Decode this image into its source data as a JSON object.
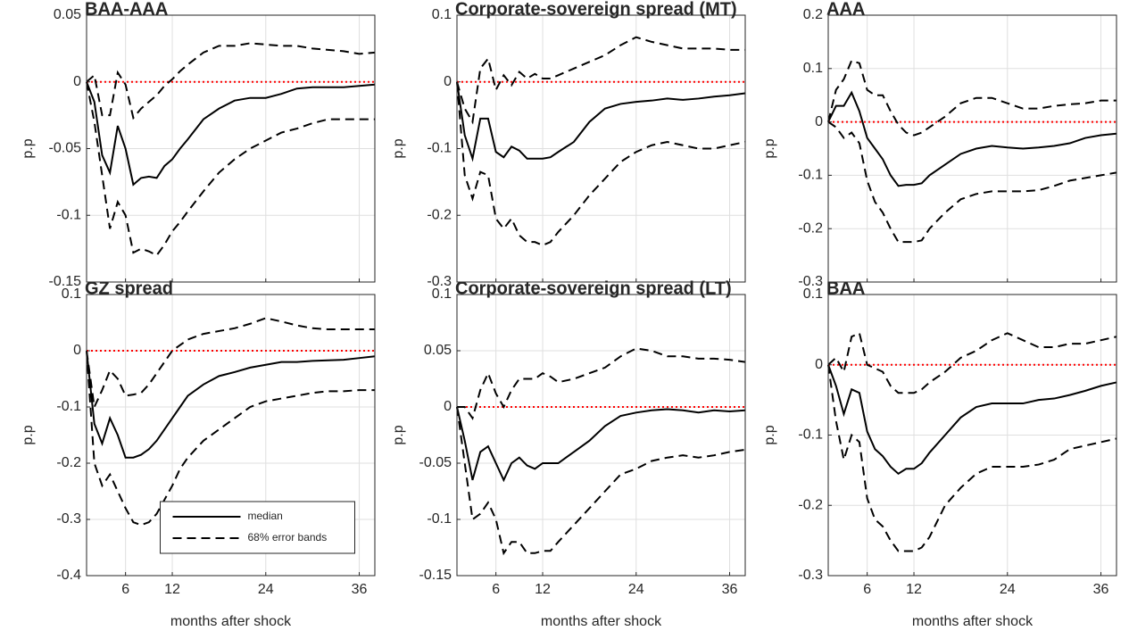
{
  "chart_data": [
    {
      "type": "line",
      "title": "BAA-AAA",
      "ylabel": "p.p",
      "xtick_labels": false,
      "grid": true,
      "x": [
        1,
        2,
        3,
        4,
        5,
        6,
        7,
        8,
        9,
        10,
        11,
        12,
        13,
        14,
        16,
        18,
        20,
        22,
        24,
        26,
        28,
        30,
        32,
        34,
        36,
        38
      ],
      "xlim": [
        1,
        38
      ],
      "xticks": [
        6,
        12,
        24,
        36
      ],
      "ylim": [
        -0.15,
        0.05
      ],
      "yticks": [
        -0.15,
        -0.1,
        -0.05,
        0,
        0.05
      ],
      "reference_line": {
        "value": 0,
        "color": "#ff0000"
      },
      "series": [
        {
          "color": "#000000",
          "dash": "solid",
          "values": [
            0,
            -0.015,
            -0.055,
            -0.068,
            -0.033,
            -0.05,
            -0.077,
            -0.072,
            -0.071,
            -0.072,
            -0.063,
            -0.058,
            -0.05,
            -0.043,
            -0.028,
            -0.02,
            -0.014,
            -0.012,
            -0.012,
            -0.009,
            -0.005,
            -0.004,
            -0.004,
            -0.004,
            -0.003,
            -0.002
          ]
        },
        {
          "color": "#000000",
          "dash": "dashed",
          "values": [
            0,
            0.005,
            -0.025,
            -0.025,
            0.007,
            -0.002,
            -0.027,
            -0.02,
            -0.015,
            -0.01,
            -0.003,
            0.002,
            0.008,
            0.013,
            0.022,
            0.027,
            0.027,
            0.029,
            0.028,
            0.027,
            0.027,
            0.025,
            0.024,
            0.023,
            0.021,
            0.022
          ]
        },
        {
          "color": "#000000",
          "dash": "dashed",
          "values": [
            0,
            -0.03,
            -0.07,
            -0.11,
            -0.09,
            -0.1,
            -0.128,
            -0.125,
            -0.127,
            -0.13,
            -0.122,
            -0.112,
            -0.105,
            -0.097,
            -0.082,
            -0.068,
            -0.058,
            -0.05,
            -0.044,
            -0.038,
            -0.035,
            -0.031,
            -0.028,
            -0.028,
            -0.028,
            -0.028
          ]
        }
      ]
    },
    {
      "type": "line",
      "title": "Corporate-sovereign spread (MT)",
      "ylabel": "p.p",
      "xtick_labels": false,
      "grid": true,
      "x": [
        1,
        2,
        3,
        4,
        5,
        6,
        7,
        8,
        9,
        10,
        11,
        12,
        13,
        14,
        16,
        18,
        20,
        22,
        24,
        26,
        28,
        30,
        32,
        34,
        36,
        38
      ],
      "xlim": [
        1,
        38
      ],
      "xticks": [
        6,
        12,
        24,
        36
      ],
      "ylim": [
        -0.3,
        0.1
      ],
      "yticks": [
        -0.3,
        -0.2,
        -0.1,
        0,
        0.1
      ],
      "reference_line": {
        "value": 0,
        "color": "#ff0000"
      },
      "series": [
        {
          "color": "#000000",
          "dash": "solid",
          "values": [
            0,
            -0.08,
            -0.115,
            -0.055,
            -0.055,
            -0.105,
            -0.113,
            -0.097,
            -0.103,
            -0.115,
            -0.115,
            -0.115,
            -0.113,
            -0.105,
            -0.09,
            -0.06,
            -0.04,
            -0.033,
            -0.03,
            -0.028,
            -0.025,
            -0.027,
            -0.025,
            -0.022,
            -0.02,
            -0.017
          ]
        },
        {
          "color": "#000000",
          "dash": "dashed",
          "values": [
            0,
            -0.04,
            -0.06,
            0.02,
            0.035,
            -0.012,
            0.01,
            -0.005,
            0.015,
            0.005,
            0.012,
            0.005,
            0.005,
            0.01,
            0.02,
            0.03,
            0.04,
            0.055,
            0.067,
            0.06,
            0.055,
            0.05,
            0.05,
            0.05,
            0.048,
            0.048
          ]
        },
        {
          "color": "#000000",
          "dash": "dashed",
          "values": [
            0,
            -0.14,
            -0.175,
            -0.135,
            -0.14,
            -0.205,
            -0.22,
            -0.205,
            -0.23,
            -0.24,
            -0.24,
            -0.245,
            -0.24,
            -0.225,
            -0.2,
            -0.17,
            -0.145,
            -0.12,
            -0.105,
            -0.095,
            -0.09,
            -0.095,
            -0.1,
            -0.1,
            -0.095,
            -0.09
          ]
        }
      ]
    },
    {
      "type": "line",
      "title": "AAA",
      "ylabel": "p.p",
      "xtick_labels": false,
      "grid": true,
      "x": [
        1,
        2,
        3,
        4,
        5,
        6,
        7,
        8,
        9,
        10,
        11,
        12,
        13,
        14,
        16,
        18,
        20,
        22,
        24,
        26,
        28,
        30,
        32,
        34,
        36,
        38
      ],
      "xlim": [
        1,
        38
      ],
      "xticks": [
        6,
        12,
        24,
        36
      ],
      "ylim": [
        -0.3,
        0.2
      ],
      "yticks": [
        -0.3,
        -0.2,
        -0.1,
        0,
        0.1,
        0.2
      ],
      "reference_line": {
        "value": 0,
        "color": "#ff0000"
      },
      "series": [
        {
          "color": "#000000",
          "dash": "solid",
          "values": [
            0,
            0.03,
            0.03,
            0.055,
            0.02,
            -0.03,
            -0.05,
            -0.07,
            -0.1,
            -0.12,
            -0.118,
            -0.118,
            -0.115,
            -0.1,
            -0.08,
            -0.06,
            -0.05,
            -0.045,
            -0.048,
            -0.05,
            -0.048,
            -0.045,
            -0.04,
            -0.03,
            -0.025,
            -0.022
          ]
        },
        {
          "color": "#000000",
          "dash": "dashed",
          "values": [
            0,
            0.06,
            0.08,
            0.115,
            0.11,
            0.06,
            0.05,
            0.05,
            0.02,
            -0.005,
            -0.02,
            -0.025,
            -0.02,
            -0.01,
            0.01,
            0.035,
            0.045,
            0.045,
            0.035,
            0.025,
            0.025,
            0.03,
            0.033,
            0.035,
            0.04,
            0.04
          ]
        },
        {
          "color": "#000000",
          "dash": "dashed",
          "values": [
            0,
            -0.01,
            -0.03,
            -0.02,
            -0.04,
            -0.11,
            -0.15,
            -0.17,
            -0.2,
            -0.225,
            -0.225,
            -0.225,
            -0.222,
            -0.2,
            -0.17,
            -0.145,
            -0.135,
            -0.13,
            -0.13,
            -0.13,
            -0.128,
            -0.12,
            -0.11,
            -0.105,
            -0.1,
            -0.095
          ]
        }
      ]
    },
    {
      "type": "line",
      "title": "GZ spread",
      "ylabel": "p.p",
      "xlabel": "months after shock",
      "xtick_labels": true,
      "grid": true,
      "legend": "lower center",
      "x": [
        1,
        2,
        3,
        4,
        5,
        6,
        7,
        8,
        9,
        10,
        11,
        12,
        13,
        14,
        16,
        18,
        20,
        22,
        24,
        26,
        28,
        30,
        32,
        34,
        36,
        38
      ],
      "xlim": [
        1,
        38
      ],
      "xticks": [
        6,
        12,
        24,
        36
      ],
      "ylim": [
        -0.4,
        0.1
      ],
      "yticks": [
        -0.4,
        -0.3,
        -0.2,
        -0.1,
        0,
        0.1
      ],
      "reference_line": {
        "value": 0,
        "color": "#ff0000"
      },
      "series": [
        {
          "name": "median",
          "color": "#000000",
          "dash": "solid",
          "values": [
            0,
            -0.13,
            -0.165,
            -0.12,
            -0.15,
            -0.19,
            -0.19,
            -0.185,
            -0.175,
            -0.16,
            -0.14,
            -0.12,
            -0.1,
            -0.08,
            -0.06,
            -0.045,
            -0.038,
            -0.03,
            -0.025,
            -0.02,
            -0.02,
            -0.018,
            -0.017,
            -0.016,
            -0.013,
            -0.01
          ]
        },
        {
          "name": "68% error bands",
          "color": "#000000",
          "dash": "dashed",
          "values": [
            0,
            -0.1,
            -0.07,
            -0.035,
            -0.05,
            -0.08,
            -0.078,
            -0.075,
            -0.06,
            -0.04,
            -0.02,
            0,
            0.01,
            0.02,
            0.03,
            0.035,
            0.04,
            0.048,
            0.058,
            0.052,
            0.045,
            0.04,
            0.038,
            0.038,
            0.038,
            0.038
          ]
        },
        {
          "color": "#000000",
          "dash": "dashed",
          "values": [
            0,
            -0.2,
            -0.24,
            -0.22,
            -0.25,
            -0.28,
            -0.305,
            -0.31,
            -0.305,
            -0.29,
            -0.265,
            -0.24,
            -0.21,
            -0.19,
            -0.16,
            -0.14,
            -0.12,
            -0.1,
            -0.09,
            -0.085,
            -0.08,
            -0.075,
            -0.072,
            -0.072,
            -0.07,
            -0.07
          ]
        }
      ]
    },
    {
      "type": "line",
      "title": "Corporate-sovereign spread (LT)",
      "ylabel": "p.p",
      "xlabel": "months after shock",
      "xtick_labels": true,
      "grid": true,
      "x": [
        1,
        2,
        3,
        4,
        5,
        6,
        7,
        8,
        9,
        10,
        11,
        12,
        13,
        14,
        16,
        18,
        20,
        22,
        24,
        26,
        28,
        30,
        32,
        34,
        36,
        38
      ],
      "xlim": [
        1,
        38
      ],
      "xticks": [
        6,
        12,
        24,
        36
      ],
      "ylim": [
        -0.15,
        0.1
      ],
      "yticks": [
        -0.15,
        -0.1,
        -0.05,
        0,
        0.05,
        0.1
      ],
      "reference_line": {
        "value": 0,
        "color": "#ff0000"
      },
      "series": [
        {
          "color": "#000000",
          "dash": "solid",
          "values": [
            0,
            -0.03,
            -0.065,
            -0.04,
            -0.035,
            -0.05,
            -0.065,
            -0.05,
            -0.045,
            -0.052,
            -0.055,
            -0.05,
            -0.05,
            -0.05,
            -0.04,
            -0.03,
            -0.017,
            -0.008,
            -0.005,
            -0.003,
            -0.002,
            -0.003,
            -0.005,
            -0.003,
            -0.004,
            -0.003
          ]
        },
        {
          "color": "#000000",
          "dash": "dashed",
          "values": [
            0,
            0,
            -0.01,
            0.015,
            0.03,
            0.012,
            0,
            0.015,
            0.025,
            0.025,
            0.025,
            0.03,
            0.027,
            0.022,
            0.025,
            0.03,
            0.035,
            0.045,
            0.052,
            0.05,
            0.045,
            0.045,
            0.043,
            0.043,
            0.042,
            0.04
          ]
        },
        {
          "color": "#000000",
          "dash": "dashed",
          "values": [
            0,
            -0.05,
            -0.1,
            -0.095,
            -0.085,
            -0.1,
            -0.13,
            -0.12,
            -0.12,
            -0.13,
            -0.13,
            -0.128,
            -0.128,
            -0.12,
            -0.105,
            -0.09,
            -0.075,
            -0.06,
            -0.055,
            -0.048,
            -0.045,
            -0.043,
            -0.045,
            -0.043,
            -0.04,
            -0.038
          ]
        }
      ]
    },
    {
      "type": "line",
      "title": "BAA",
      "ylabel": "p.p",
      "xlabel": "months after shock",
      "xtick_labels": true,
      "grid": true,
      "x": [
        1,
        2,
        3,
        4,
        5,
        6,
        7,
        8,
        9,
        10,
        11,
        12,
        13,
        14,
        16,
        18,
        20,
        22,
        24,
        26,
        28,
        30,
        32,
        34,
        36,
        38
      ],
      "xlim": [
        1,
        38
      ],
      "xticks": [
        6,
        12,
        24,
        36
      ],
      "ylim": [
        -0.3,
        0.1
      ],
      "yticks": [
        -0.3,
        -0.2,
        -0.1,
        0,
        0.1
      ],
      "reference_line": {
        "value": 0,
        "color": "#ff0000"
      },
      "series": [
        {
          "color": "#000000",
          "dash": "solid",
          "values": [
            0,
            -0.03,
            -0.07,
            -0.035,
            -0.04,
            -0.095,
            -0.12,
            -0.13,
            -0.145,
            -0.155,
            -0.148,
            -0.148,
            -0.14,
            -0.125,
            -0.1,
            -0.075,
            -0.06,
            -0.055,
            -0.055,
            -0.055,
            -0.05,
            -0.048,
            -0.043,
            -0.037,
            -0.03,
            -0.025
          ]
        },
        {
          "color": "#000000",
          "dash": "dashed",
          "values": [
            0,
            0.01,
            -0.01,
            0.04,
            0.045,
            0,
            -0.005,
            -0.01,
            -0.03,
            -0.04,
            -0.04,
            -0.04,
            -0.035,
            -0.025,
            -0.01,
            0.01,
            0.02,
            0.035,
            0.045,
            0.035,
            0.025,
            0.025,
            0.03,
            0.03,
            0.035,
            0.04
          ]
        },
        {
          "color": "#000000",
          "dash": "dashed",
          "values": [
            0,
            -0.08,
            -0.135,
            -0.1,
            -0.11,
            -0.19,
            -0.22,
            -0.23,
            -0.25,
            -0.265,
            -0.265,
            -0.265,
            -0.26,
            -0.245,
            -0.2,
            -0.175,
            -0.155,
            -0.145,
            -0.145,
            -0.145,
            -0.142,
            -0.135,
            -0.12,
            -0.115,
            -0.11,
            -0.105
          ]
        }
      ]
    }
  ]
}
